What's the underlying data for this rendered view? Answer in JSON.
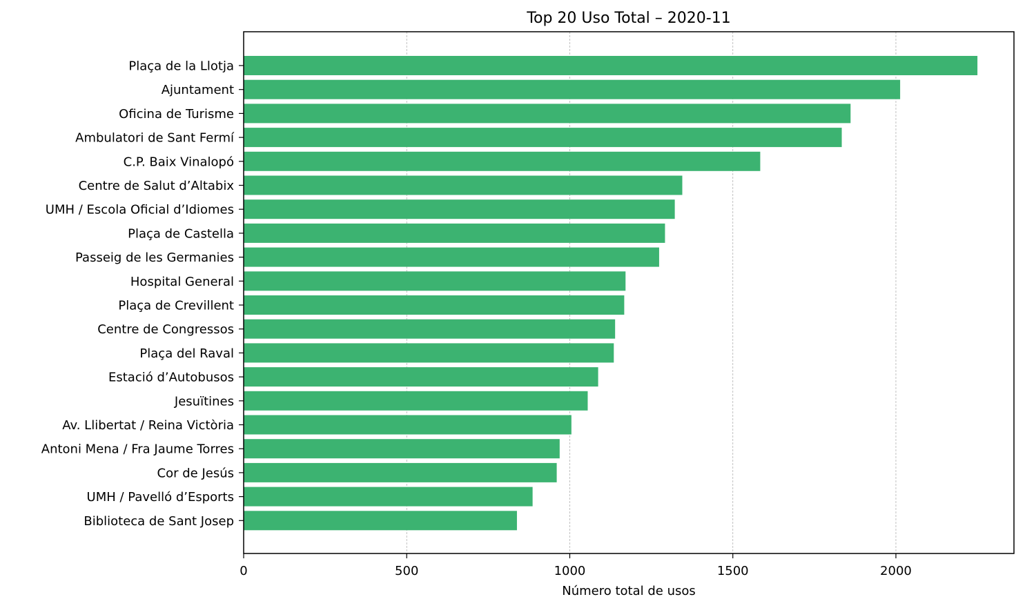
{
  "chart_data": {
    "type": "bar",
    "orientation": "horizontal",
    "title": "Top 20 Uso Total – 2020-11",
    "xlabel": "Número total de usos",
    "ylabel": "",
    "xlim": [
      0,
      2362
    ],
    "xticks": [
      0,
      500,
      1000,
      1500,
      2000
    ],
    "grid": "x-dashed",
    "bar_color": "#3cb371",
    "categories": [
      "Plaça de la Llotja",
      "Ajuntament",
      "Oficina de Turisme",
      "Ambulatori de Sant Fermí",
      "C.P. Baix Vinalopó",
      "Centre de Salut d’Altabix",
      "UMH / Escola Oficial d’Idiomes",
      "Plaça de Castella",
      "Passeig de les Germanies",
      "Hospital General",
      "Plaça de Crevillent",
      "Centre de Congressos",
      "Plaça del Raval",
      "Estació d’Autobusos",
      "Jesuïtines",
      "Av. Llibertat / Reina Victòria",
      "Antoni Mena / Fra Jaume Torres",
      "Cor de Jesús",
      "UMH / Pavelló d’Esports",
      "Biblioteca de Sant Josep"
    ],
    "values": [
      2250,
      2013,
      1861,
      1834,
      1584,
      1345,
      1322,
      1292,
      1274,
      1171,
      1167,
      1139,
      1135,
      1087,
      1055,
      1005,
      969,
      960,
      886,
      838
    ]
  }
}
